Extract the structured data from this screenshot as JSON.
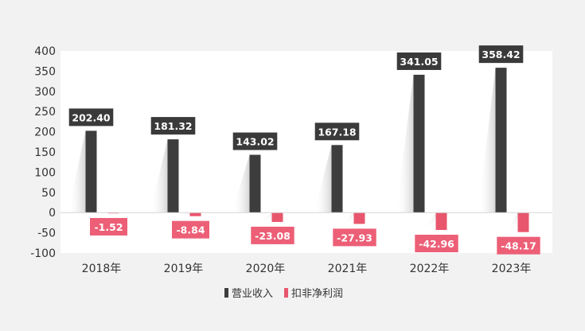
{
  "chart_data": {
    "type": "bar",
    "categories": [
      "2018年",
      "2019年",
      "2020年",
      "2021年",
      "2022年",
      "2023年"
    ],
    "series": [
      {
        "name": "营业收入",
        "values": [
          202.4,
          181.32,
          143.02,
          167.18,
          341.05,
          358.42
        ],
        "color": "#3d3d3d",
        "label_bg": "#3a3a3a"
      },
      {
        "name": "扣非净利润",
        "values": [
          -1.52,
          -8.84,
          -23.08,
          -27.93,
          -42.96,
          -48.17
        ],
        "color": "#e8566e",
        "label_bg": "#ec5f76"
      }
    ],
    "ylim": [
      -100,
      400
    ],
    "yticks": [
      -100,
      -50,
      0,
      50,
      100,
      150,
      200,
      250,
      300,
      350,
      400
    ],
    "legend_position": "bottom-center",
    "grid": false,
    "title": "",
    "xlabel": "",
    "ylabel": ""
  }
}
